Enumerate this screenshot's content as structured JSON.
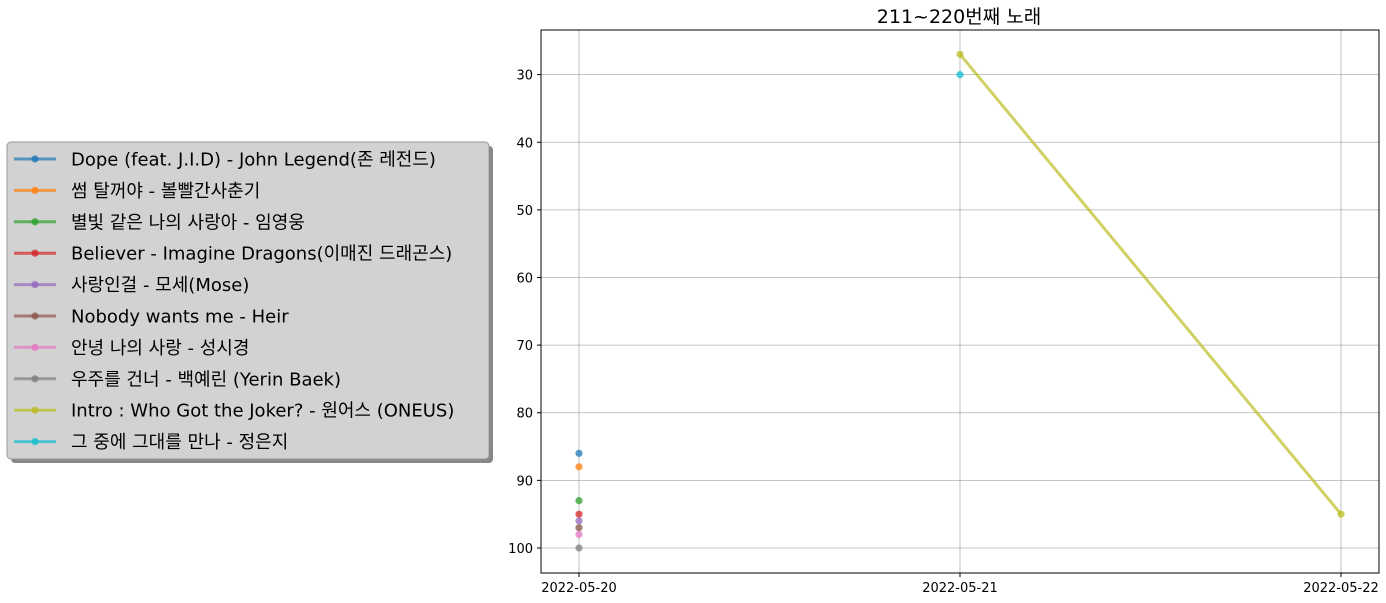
{
  "chart_data": {
    "type": "line",
    "title": "211~220번째 노래",
    "xlabel": "",
    "ylabel": "",
    "x_categories": [
      "2022-05-20",
      "2022-05-21",
      "2022-05-22"
    ],
    "y_ticks": [
      30,
      40,
      50,
      60,
      70,
      80,
      90,
      100
    ],
    "ylim": [
      103.7,
      23.4
    ],
    "y_inverted": true,
    "grid": true,
    "legend_position": "left, outside plot area",
    "series": [
      {
        "name": "Dope (feat. J.I.D) - John Legend(존 레전드)",
        "color": "#1f77b4",
        "points": [
          {
            "x": "2022-05-20",
            "y": 86
          }
        ]
      },
      {
        "name": "썸 탈꺼야 - 볼빨간사춘기",
        "color": "#ff7f0e",
        "points": [
          {
            "x": "2022-05-20",
            "y": 88
          }
        ]
      },
      {
        "name": "별빛 같은 나의 사랑아 - 임영웅",
        "color": "#2ca02c",
        "points": [
          {
            "x": "2022-05-20",
            "y": 93
          }
        ]
      },
      {
        "name": "Believer - Imagine Dragons(이매진 드래곤스)",
        "color": "#d62728",
        "points": [
          {
            "x": "2022-05-20",
            "y": 95
          }
        ]
      },
      {
        "name": "사랑인걸 - 모세(Mose)",
        "color": "#9467bd",
        "points": [
          {
            "x": "2022-05-20",
            "y": 96
          }
        ]
      },
      {
        "name": "Nobody wants me - Heir",
        "color": "#8c564b",
        "points": [
          {
            "x": "2022-05-20",
            "y": 97
          }
        ]
      },
      {
        "name": "안녕 나의 사랑 - 성시경",
        "color": "#e377c2",
        "points": [
          {
            "x": "2022-05-20",
            "y": 98
          }
        ]
      },
      {
        "name": "우주를 건너 - 백예린 (Yerin Baek)",
        "color": "#7f7f7f",
        "points": [
          {
            "x": "2022-05-20",
            "y": 100
          }
        ]
      },
      {
        "name": "Intro : Who Got the Joker? - 원어스 (ONEUS)",
        "color": "#bcbd22",
        "points": [
          {
            "x": "2022-05-21",
            "y": 27
          },
          {
            "x": "2022-05-22",
            "y": 95
          }
        ]
      },
      {
        "name": "그 중에 그대를 만나 - 정은지",
        "color": "#17becf",
        "points": [
          {
            "x": "2022-05-21",
            "y": 30
          }
        ]
      }
    ]
  }
}
